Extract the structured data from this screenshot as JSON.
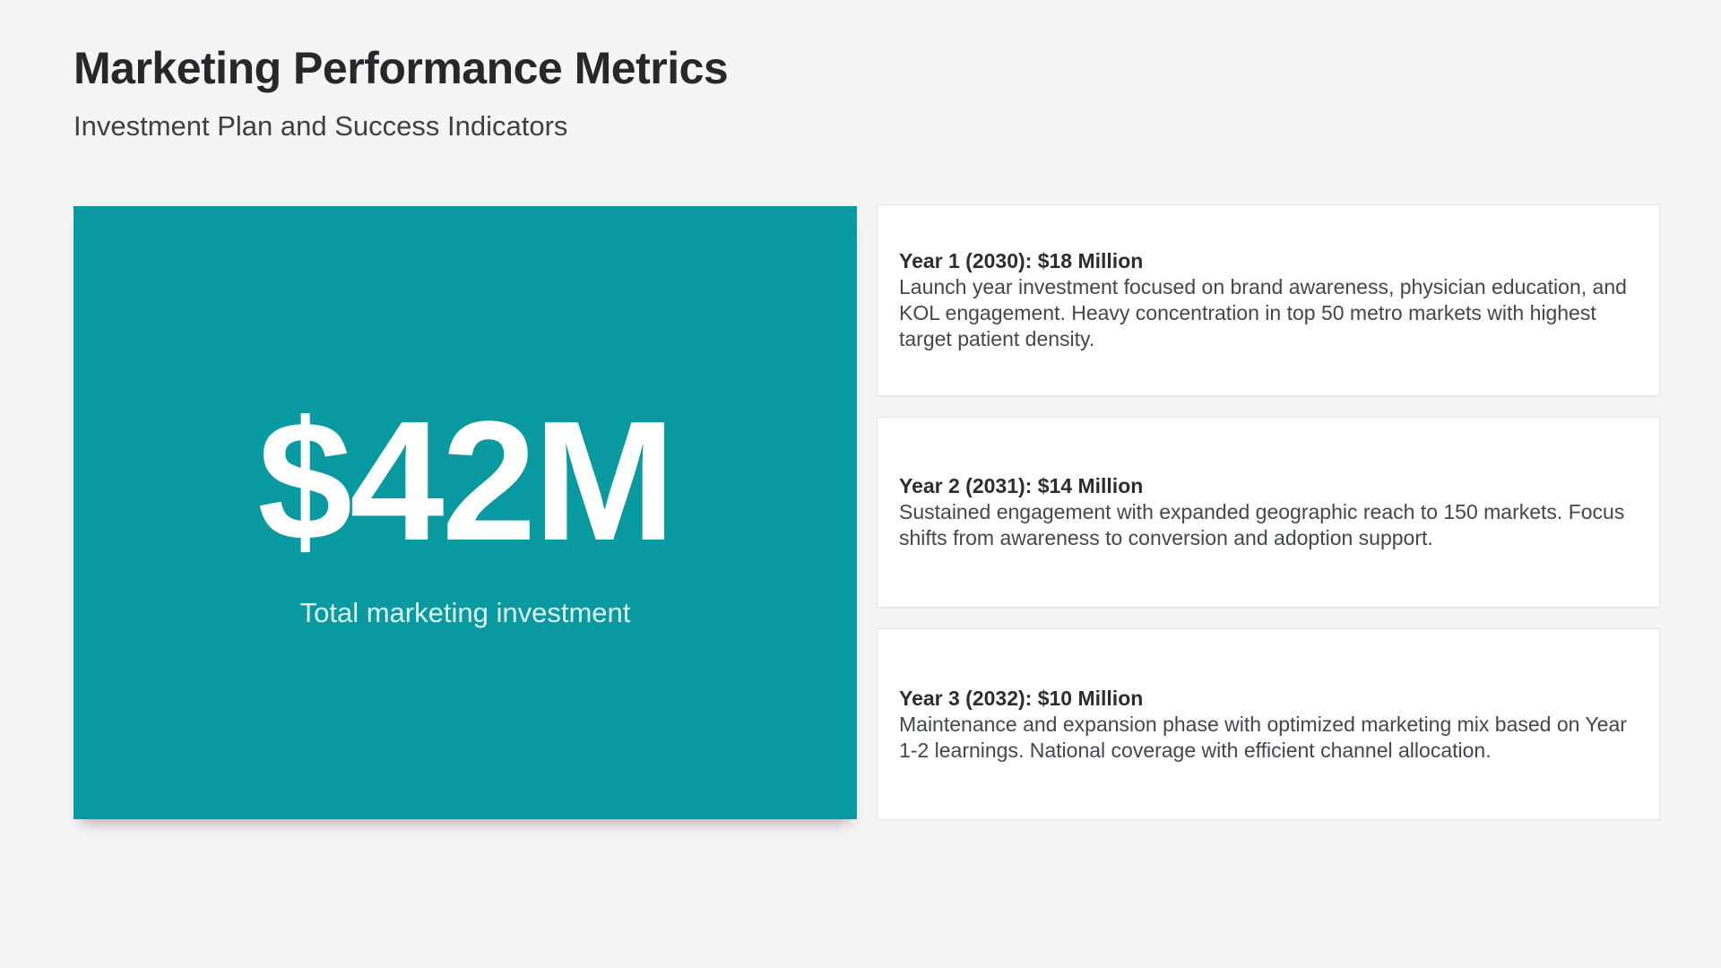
{
  "page": {
    "title": "Marketing Performance Metrics",
    "subtitle": "Investment Plan and Success Indicators"
  },
  "hero": {
    "value": "$42M",
    "label": "Total marketing investment"
  },
  "cards": [
    {
      "heading": "Year 1 (2030): $18 Million",
      "body": "Launch year investment focused on brand awareness, physician education, and KOL engagement. Heavy concentration in top 50 metro markets with highest target patient density."
    },
    {
      "heading": "Year 2 (2031): $14 Million",
      "body": "Sustained engagement with expanded geographic reach to 150 markets. Focus shifts from awareness to conversion and adoption support."
    },
    {
      "heading": "Year 3 (2032): $10 Million",
      "body": "Maintenance and expansion phase with optimized marketing mix based on Year 1-2 learnings. National coverage with efficient channel allocation."
    }
  ],
  "colors": {
    "accent_teal": "#0999a1",
    "page_background": "#f5f5f6",
    "card_border": "#dbe7e8",
    "title_text": "#26282b",
    "body_text": "#41474c",
    "hero_text": "#ffffff"
  }
}
